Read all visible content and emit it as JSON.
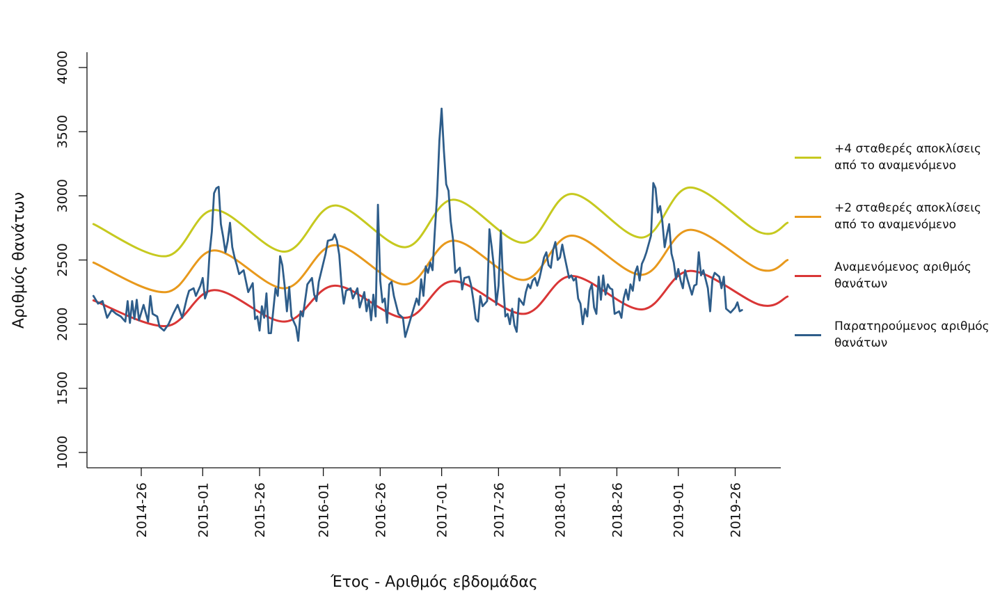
{
  "chart_data": {
    "type": "line",
    "title": "",
    "xlabel": "Έτος - Αριθμός εβδομάδας",
    "ylabel": "Αριθμός θανάτων",
    "ylim": [
      1000,
      4000
    ],
    "yticks": [
      "1000",
      "1500",
      "2000",
      "2500",
      "3000",
      "3500",
      "4000"
    ],
    "xticks": [
      "2014-26",
      "2015-01",
      "2015-26",
      "2016-01",
      "2016-26",
      "2017-01",
      "2017-26",
      "2018-01",
      "2018-26",
      "2019-01",
      "2019-26"
    ],
    "x_start_week": "2014-05",
    "x_end_week": "2019-49",
    "legend_position": "right",
    "series": [
      {
        "name": "+4 σταθερές αποκλίσεις από το αναμενόμενο",
        "color": "#c6c91f",
        "points": [
          [
            "2014-05",
            2780
          ],
          [
            "2014-37",
            2530
          ],
          [
            "2015-06",
            2890
          ],
          [
            "2015-37",
            2565
          ],
          [
            "2016-06",
            2925
          ],
          [
            "2016-37",
            2600
          ],
          [
            "2017-06",
            2970
          ],
          [
            "2017-37",
            2635
          ],
          [
            "2018-06",
            3015
          ],
          [
            "2018-37",
            2675
          ],
          [
            "2019-06",
            3065
          ],
          [
            "2019-37",
            2715
          ],
          [
            "2019-49",
            2790
          ]
        ]
      },
      {
        "name": "+2 σταθερές αποκλίσεις από το αναμενόμενο",
        "color": "#e8991c",
        "points": [
          [
            "2014-05",
            2480
          ],
          [
            "2014-37",
            2250
          ],
          [
            "2015-06",
            2575
          ],
          [
            "2015-37",
            2280
          ],
          [
            "2016-06",
            2615
          ],
          [
            "2016-37",
            2310
          ],
          [
            "2017-06",
            2650
          ],
          [
            "2017-37",
            2345
          ],
          [
            "2018-06",
            2690
          ],
          [
            "2018-37",
            2385
          ],
          [
            "2019-06",
            2735
          ],
          [
            "2019-37",
            2425
          ],
          [
            "2019-49",
            2500
          ]
        ]
      },
      {
        "name": "Αναμενόμενος αριθμός θανάτων",
        "color": "#d93636",
        "points": [
          [
            "2014-05",
            2185
          ],
          [
            "2014-37",
            1985
          ],
          [
            "2015-06",
            2265
          ],
          [
            "2015-37",
            2020
          ],
          [
            "2016-06",
            2300
          ],
          [
            "2016-37",
            2050
          ],
          [
            "2017-06",
            2335
          ],
          [
            "2017-37",
            2080
          ],
          [
            "2018-06",
            2375
          ],
          [
            "2018-37",
            2115
          ],
          [
            "2019-06",
            2415
          ],
          [
            "2019-37",
            2150
          ],
          [
            "2019-49",
            2215
          ]
        ]
      },
      {
        "name": "Παρατηρούμενος αριθμός θανάτων",
        "color": "#2e5d8a",
        "points": [
          [
            "2014-05",
            2220
          ],
          [
            "2014-07",
            2160
          ],
          [
            "2014-09",
            2180
          ],
          [
            "2014-11",
            2050
          ],
          [
            "2014-13",
            2110
          ],
          [
            "2014-15",
            2080
          ],
          [
            "2014-17",
            2060
          ],
          [
            "2014-19",
            2020
          ],
          [
            "2014-20",
            2180
          ],
          [
            "2014-21",
            2010
          ],
          [
            "2014-22",
            2180
          ],
          [
            "2014-23",
            2040
          ],
          [
            "2014-24",
            2190
          ],
          [
            "2014-25",
            2030
          ],
          [
            "2014-27",
            2150
          ],
          [
            "2014-29",
            2020
          ],
          [
            "2014-30",
            2220
          ],
          [
            "2014-31",
            2080
          ],
          [
            "2014-33",
            2060
          ],
          [
            "2014-34",
            1980
          ],
          [
            "2014-36",
            1950
          ],
          [
            "2014-38",
            2000
          ],
          [
            "2014-40",
            2080
          ],
          [
            "2014-42",
            2150
          ],
          [
            "2014-44",
            2050
          ],
          [
            "2014-46",
            2200
          ],
          [
            "2014-47",
            2260
          ],
          [
            "2014-49",
            2280
          ],
          [
            "2014-50",
            2220
          ],
          [
            "2014-52",
            2300
          ],
          [
            "2015-01",
            2360
          ],
          [
            "2015-02",
            2200
          ],
          [
            "2015-03",
            2250
          ],
          [
            "2015-04",
            2550
          ],
          [
            "2015-05",
            2720
          ],
          [
            "2015-06",
            3020
          ],
          [
            "2015-07",
            3060
          ],
          [
            "2015-08",
            3070
          ],
          [
            "2015-09",
            2780
          ],
          [
            "2015-10",
            2680
          ],
          [
            "2015-11",
            2560
          ],
          [
            "2015-12",
            2650
          ],
          [
            "2015-13",
            2790
          ],
          [
            "2015-14",
            2600
          ],
          [
            "2015-15",
            2520
          ],
          [
            "2015-16",
            2460
          ],
          [
            "2015-17",
            2390
          ],
          [
            "2015-19",
            2420
          ],
          [
            "2015-21",
            2250
          ],
          [
            "2015-23",
            2320
          ],
          [
            "2015-24",
            2040
          ],
          [
            "2015-25",
            2060
          ],
          [
            "2015-26",
            1950
          ],
          [
            "2015-27",
            2140
          ],
          [
            "2015-28",
            2050
          ],
          [
            "2015-29",
            2240
          ],
          [
            "2015-30",
            1930
          ],
          [
            "2015-31",
            1930
          ],
          [
            "2015-33",
            2280
          ],
          [
            "2015-34",
            2220
          ],
          [
            "2015-35",
            2530
          ],
          [
            "2015-36",
            2460
          ],
          [
            "2015-37",
            2300
          ],
          [
            "2015-38",
            2100
          ],
          [
            "2015-39",
            2290
          ],
          [
            "2015-40",
            2060
          ],
          [
            "2015-42",
            1980
          ],
          [
            "2015-43",
            1870
          ],
          [
            "2015-44",
            2100
          ],
          [
            "2015-45",
            2060
          ],
          [
            "2015-47",
            2310
          ],
          [
            "2015-49",
            2360
          ],
          [
            "2015-50",
            2230
          ],
          [
            "2015-51",
            2180
          ],
          [
            "2015-52",
            2330
          ],
          [
            "2016-02",
            2550
          ],
          [
            "2016-03",
            2650
          ],
          [
            "2016-05",
            2660
          ],
          [
            "2016-06",
            2700
          ],
          [
            "2016-07",
            2650
          ],
          [
            "2016-08",
            2540
          ],
          [
            "2016-09",
            2300
          ],
          [
            "2016-10",
            2160
          ],
          [
            "2016-11",
            2260
          ],
          [
            "2016-13",
            2280
          ],
          [
            "2016-14",
            2200
          ],
          [
            "2016-16",
            2280
          ],
          [
            "2016-17",
            2130
          ],
          [
            "2016-19",
            2250
          ],
          [
            "2016-20",
            2100
          ],
          [
            "2016-21",
            2190
          ],
          [
            "2016-22",
            2030
          ],
          [
            "2016-23",
            2230
          ],
          [
            "2016-24",
            2060
          ],
          [
            "2016-25",
            2930
          ],
          [
            "2016-26",
            2340
          ],
          [
            "2016-27",
            2170
          ],
          [
            "2016-28",
            2200
          ],
          [
            "2016-29",
            2010
          ],
          [
            "2016-30",
            2310
          ],
          [
            "2016-31",
            2330
          ],
          [
            "2016-32",
            2220
          ],
          [
            "2016-34",
            2080
          ],
          [
            "2016-36",
            2050
          ],
          [
            "2016-37",
            1900
          ],
          [
            "2016-38",
            1960
          ],
          [
            "2016-40",
            2080
          ],
          [
            "2016-42",
            2200
          ],
          [
            "2016-43",
            2150
          ],
          [
            "2016-44",
            2350
          ],
          [
            "2016-45",
            2220
          ],
          [
            "2016-46",
            2450
          ],
          [
            "2016-47",
            2400
          ],
          [
            "2016-48",
            2480
          ],
          [
            "2016-49",
            2420
          ],
          [
            "2016-50",
            2720
          ],
          [
            "2016-51",
            3000
          ],
          [
            "2016-52",
            3430
          ],
          [
            "2017-01",
            3680
          ],
          [
            "2017-02",
            3350
          ],
          [
            "2017-03",
            3090
          ],
          [
            "2017-04",
            3040
          ],
          [
            "2017-05",
            2800
          ],
          [
            "2017-06",
            2660
          ],
          [
            "2017-07",
            2400
          ],
          [
            "2017-08",
            2420
          ],
          [
            "2017-09",
            2440
          ],
          [
            "2017-10",
            2270
          ],
          [
            "2017-11",
            2360
          ],
          [
            "2017-13",
            2370
          ],
          [
            "2017-14",
            2300
          ],
          [
            "2017-15",
            2180
          ],
          [
            "2017-16",
            2040
          ],
          [
            "2017-17",
            2020
          ],
          [
            "2017-18",
            2220
          ],
          [
            "2017-19",
            2140
          ],
          [
            "2017-21",
            2180
          ],
          [
            "2017-22",
            2740
          ],
          [
            "2017-23",
            2600
          ],
          [
            "2017-24",
            2440
          ],
          [
            "2017-25",
            2150
          ],
          [
            "2017-26",
            2300
          ],
          [
            "2017-27",
            2730
          ],
          [
            "2017-28",
            2330
          ],
          [
            "2017-29",
            2060
          ],
          [
            "2017-30",
            2080
          ],
          [
            "2017-31",
            2000
          ],
          [
            "2017-32",
            2120
          ],
          [
            "2017-33",
            1990
          ],
          [
            "2017-34",
            1940
          ],
          [
            "2017-35",
            2200
          ],
          [
            "2017-37",
            2150
          ],
          [
            "2017-38",
            2250
          ],
          [
            "2017-39",
            2310
          ],
          [
            "2017-40",
            2280
          ],
          [
            "2017-41",
            2340
          ],
          [
            "2017-42",
            2360
          ],
          [
            "2017-43",
            2300
          ],
          [
            "2017-44",
            2360
          ],
          [
            "2017-46",
            2520
          ],
          [
            "2017-47",
            2560
          ],
          [
            "2017-48",
            2460
          ],
          [
            "2017-49",
            2440
          ],
          [
            "2017-50",
            2580
          ],
          [
            "2017-51",
            2640
          ],
          [
            "2017-52",
            2500
          ],
          [
            "2018-01",
            2520
          ],
          [
            "2018-02",
            2620
          ],
          [
            "2018-03",
            2530
          ],
          [
            "2018-05",
            2360
          ],
          [
            "2018-06",
            2380
          ],
          [
            "2018-07",
            2340
          ],
          [
            "2018-08",
            2360
          ],
          [
            "2018-09",
            2200
          ],
          [
            "2018-10",
            2160
          ],
          [
            "2018-11",
            2000
          ],
          [
            "2018-12",
            2120
          ],
          [
            "2018-13",
            2060
          ],
          [
            "2018-14",
            2260
          ],
          [
            "2018-15",
            2310
          ],
          [
            "2018-16",
            2130
          ],
          [
            "2018-17",
            2080
          ],
          [
            "2018-18",
            2370
          ],
          [
            "2018-19",
            2190
          ],
          [
            "2018-20",
            2380
          ],
          [
            "2018-21",
            2230
          ],
          [
            "2018-22",
            2310
          ],
          [
            "2018-23",
            2280
          ],
          [
            "2018-24",
            2270
          ],
          [
            "2018-25",
            2080
          ],
          [
            "2018-27",
            2100
          ],
          [
            "2018-28",
            2050
          ],
          [
            "2018-29",
            2200
          ],
          [
            "2018-30",
            2270
          ],
          [
            "2018-31",
            2190
          ],
          [
            "2018-32",
            2310
          ],
          [
            "2018-33",
            2260
          ],
          [
            "2018-34",
            2400
          ],
          [
            "2018-35",
            2450
          ],
          [
            "2018-36",
            2340
          ],
          [
            "2018-37",
            2470
          ],
          [
            "2018-38",
            2510
          ],
          [
            "2018-39",
            2560
          ],
          [
            "2018-41",
            2690
          ],
          [
            "2018-42",
            3100
          ],
          [
            "2018-43",
            3060
          ],
          [
            "2018-44",
            2870
          ],
          [
            "2018-45",
            2920
          ],
          [
            "2018-46",
            2800
          ],
          [
            "2018-47",
            2600
          ],
          [
            "2018-48",
            2700
          ],
          [
            "2018-49",
            2780
          ],
          [
            "2018-50",
            2550
          ],
          [
            "2018-51",
            2480
          ],
          [
            "2018-52",
            2350
          ],
          [
            "2019-01",
            2430
          ],
          [
            "2019-02",
            2340
          ],
          [
            "2019-03",
            2280
          ],
          [
            "2019-04",
            2420
          ],
          [
            "2019-05",
            2350
          ],
          [
            "2019-07",
            2230
          ],
          [
            "2019-08",
            2300
          ],
          [
            "2019-09",
            2310
          ],
          [
            "2019-10",
            2560
          ],
          [
            "2019-11",
            2380
          ],
          [
            "2019-12",
            2420
          ],
          [
            "2019-13",
            2350
          ],
          [
            "2019-14",
            2280
          ],
          [
            "2019-15",
            2100
          ],
          [
            "2019-16",
            2350
          ],
          [
            "2019-17",
            2400
          ],
          [
            "2019-19",
            2370
          ],
          [
            "2019-20",
            2280
          ],
          [
            "2019-21",
            2370
          ],
          [
            "2019-22",
            2120
          ],
          [
            "2019-24",
            2090
          ],
          [
            "2019-26",
            2130
          ],
          [
            "2019-27",
            2170
          ],
          [
            "2019-28",
            2100
          ],
          [
            "2019-29",
            2110
          ]
        ]
      }
    ]
  }
}
